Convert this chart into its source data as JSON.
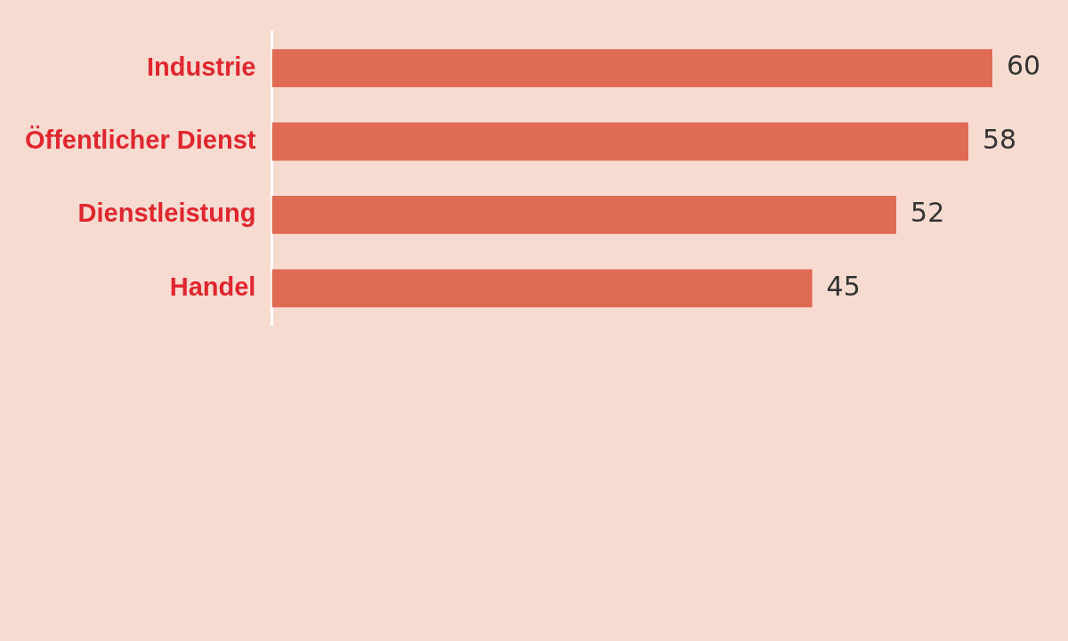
{
  "chart_data": {
    "type": "bar",
    "orientation": "horizontal",
    "categories": [
      "Industrie",
      "Öffentlicher Dienst",
      "Dienstleistung",
      "Handel"
    ],
    "values": [
      60,
      58,
      52,
      45
    ],
    "color": "#e06b55",
    "tick_labels": "y",
    "data_labels": true
  }
}
